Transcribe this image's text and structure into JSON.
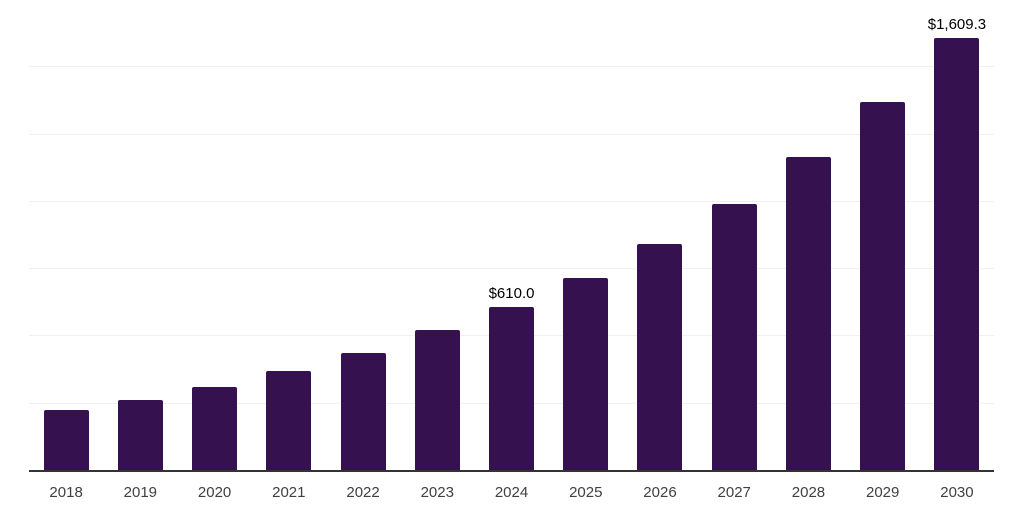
{
  "chart_data": {
    "type": "bar",
    "title": "",
    "xlabel": "",
    "ylabel": "",
    "categories": [
      "2018",
      "2019",
      "2020",
      "2021",
      "2022",
      "2023",
      "2024",
      "2025",
      "2026",
      "2027",
      "2028",
      "2029",
      "2030"
    ],
    "values": [
      228,
      265,
      312,
      372,
      440,
      524,
      610.0,
      717,
      843,
      991,
      1166,
      1371,
      1609.3
    ],
    "data_labels": [
      "",
      "",
      "",
      "",
      "",
      "",
      "$610.0",
      "",
      "",
      "",
      "",
      "",
      "$1,609.3"
    ],
    "ylim": [
      0,
      1750
    ],
    "gridline_step": 250,
    "grid": "horizontal",
    "legend": "none",
    "colors": {
      "bar": "#361150",
      "gridline": "#f0f0f0",
      "axis_line": "#333333",
      "data_label_text": "#000000",
      "tick_label_text": "#404040",
      "background": "#ffffff"
    }
  }
}
